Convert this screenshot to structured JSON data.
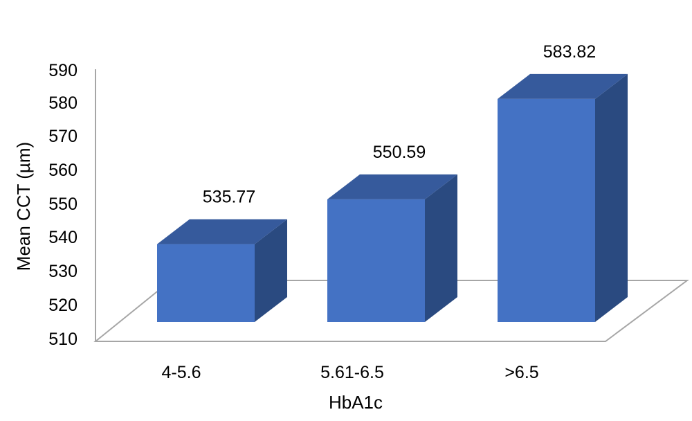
{
  "chart_data": {
    "type": "bar",
    "style": "3d-column",
    "categories": [
      "4-5.6",
      "5.61-6.5",
      ">6.5"
    ],
    "values": [
      535.77,
      550.59,
      583.82
    ],
    "data_labels": [
      "535.77",
      "550.59",
      "583.82"
    ],
    "xlabel": "HbA1c",
    "ylabel": "Mean CCT (µm)",
    "ylim": [
      510,
      590
    ],
    "yticks": [
      "590",
      "580",
      "570",
      "560",
      "550",
      "540",
      "530",
      "520",
      "510"
    ],
    "grid": false,
    "legend": "none",
    "colors": {
      "bar_front": "#4472C4",
      "bar_top": "#365A9C",
      "bar_side": "#2A4A80",
      "floor_line": "#A6A6A6"
    }
  }
}
